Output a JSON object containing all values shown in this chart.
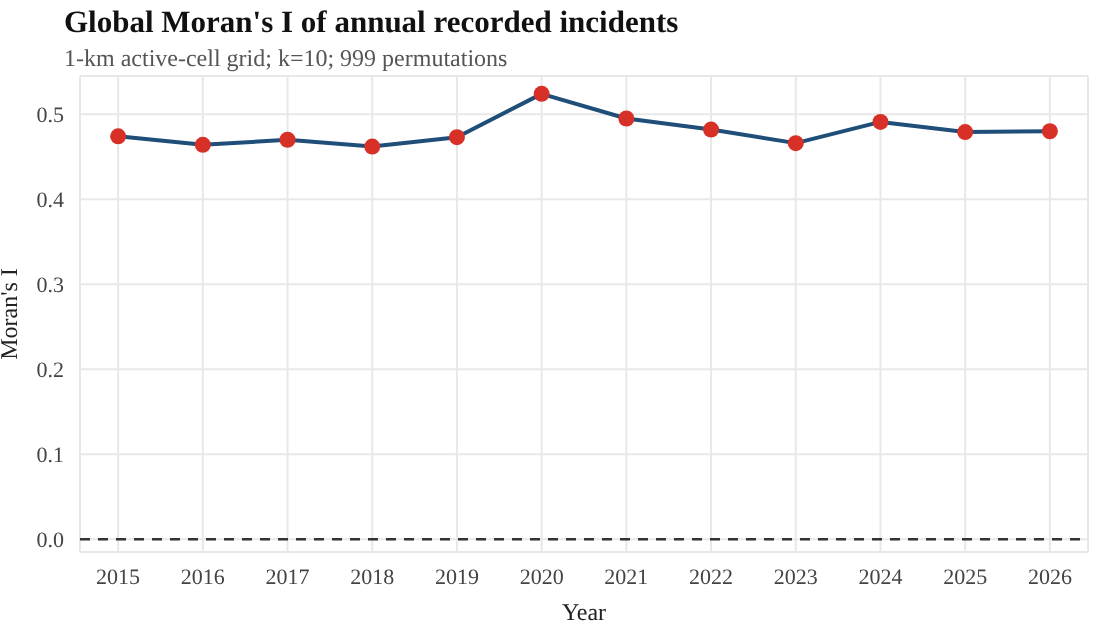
{
  "chart_data": {
    "type": "line",
    "title": "Global Moran's I of annual recorded incidents",
    "subtitle": "1-km active-cell grid; k=10; 999 permutations",
    "xlabel": "Year",
    "ylabel": "Moran's I",
    "x": [
      2015,
      2016,
      2017,
      2018,
      2019,
      2020,
      2021,
      2022,
      2023,
      2024,
      2025,
      2026
    ],
    "series": [
      {
        "color": "#1f4e79",
        "colors": [
          "#d73027",
          "#d73027",
          "#d73027",
          "#d73027",
          "#d73027",
          "#d73027",
          "#d73027",
          "#d73027",
          "#d73027",
          "#d73027",
          "#d73027",
          "#d73027"
        ],
        "values": [
          0.474,
          0.464,
          0.47,
          0.462,
          0.473,
          0.524,
          0.495,
          0.482,
          0.466,
          0.491,
          0.479,
          0.48
        ]
      }
    ],
    "xlim": [
      2014.55,
      2026.45
    ],
    "xticks": [
      2015,
      2016,
      2017,
      2018,
      2019,
      2020,
      2021,
      2022,
      2023,
      2024,
      2025,
      2026
    ],
    "ylim": [
      -0.015,
      0.545
    ],
    "yticks": [
      {
        "value": 0,
        "label": "0.0"
      },
      0.1,
      0.2,
      0.3,
      0.4,
      0.5
    ],
    "ref_lines": [
      {
        "axis": "y",
        "value": 0,
        "color": "#333333",
        "line_style": "dashed"
      }
    ],
    "grid": true,
    "marker": "circle",
    "line_style": "solid"
  }
}
